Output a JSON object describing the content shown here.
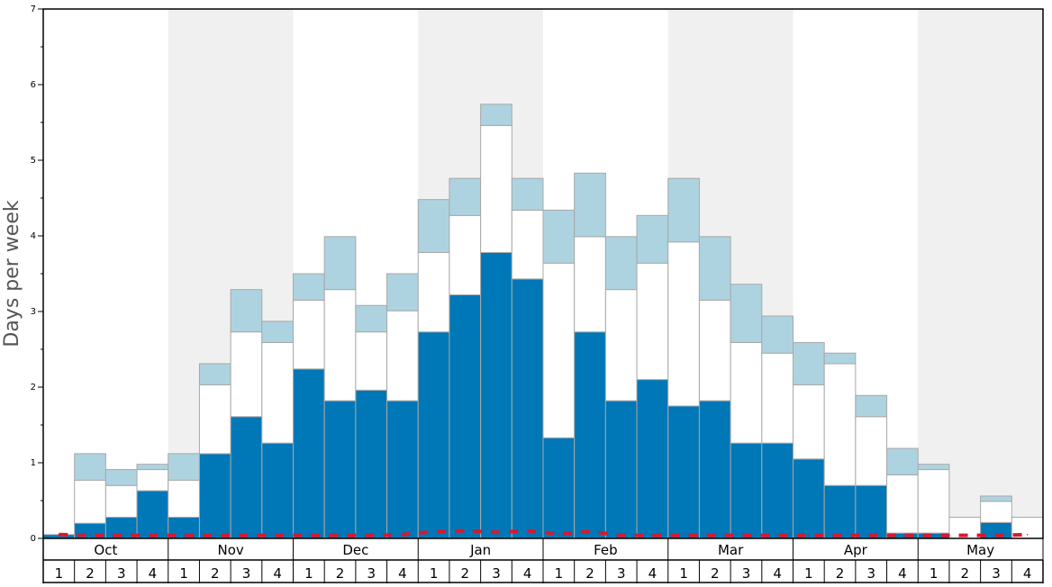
{
  "chart_data": {
    "type": "bar",
    "stacked": true,
    "ylabel": "Days per week",
    "ylim": [
      0,
      7
    ],
    "yticks": [
      0,
      1,
      2,
      3,
      4,
      5,
      6,
      7
    ],
    "months": [
      "Oct",
      "Nov",
      "Dec",
      "Jan",
      "Feb",
      "Mar",
      "Apr",
      "May"
    ],
    "week_labels": [
      "1",
      "2",
      "3",
      "4"
    ],
    "grid": false,
    "colors": {
      "bottom_series": "#0077b6",
      "middle_series": "#ffffff",
      "top_series": "#aed3e0",
      "line_series": "#d9182d",
      "band_shade": "#f0f0f0",
      "bar_outline": "#a8a8a8"
    },
    "series": [
      {
        "values": [
          0.05,
          0.2,
          0.28,
          0.63,
          0.28,
          1.12,
          1.61,
          1.26,
          2.24,
          1.82,
          1.96,
          1.82,
          2.73,
          3.22,
          3.78,
          3.43,
          1.33,
          2.73,
          1.82,
          2.1,
          1.75,
          1.82,
          1.26,
          1.26,
          1.05,
          0.7,
          0.7,
          0.07,
          0.07,
          0.0,
          0.21,
          0.0
        ]
      },
      {
        "values": [
          0.0,
          0.57,
          0.42,
          0.28,
          0.49,
          0.91,
          1.12,
          1.33,
          0.91,
          1.47,
          0.77,
          1.19,
          1.05,
          1.05,
          1.68,
          0.91,
          2.31,
          1.26,
          1.47,
          1.54,
          2.17,
          1.33,
          1.33,
          1.19,
          0.98,
          1.61,
          0.91,
          0.77,
          0.84,
          0.28,
          0.28,
          0.28
        ]
      },
      {
        "values": [
          0.0,
          0.35,
          0.21,
          0.07,
          0.35,
          0.28,
          0.56,
          0.28,
          0.35,
          0.7,
          0.35,
          0.49,
          0.7,
          0.49,
          0.28,
          0.42,
          0.7,
          0.84,
          0.7,
          0.63,
          0.84,
          0.84,
          0.77,
          0.49,
          0.56,
          0.14,
          0.28,
          0.35,
          0.07,
          0.0,
          0.07,
          0.0
        ]
      },
      {
        "values": [
          0.05,
          0.04,
          0.04,
          0.04,
          0.04,
          0.04,
          0.04,
          0.04,
          0.04,
          0.04,
          0.04,
          0.05,
          0.09,
          0.1,
          0.08,
          0.1,
          0.06,
          0.09,
          0.04,
          0.04,
          0.04,
          0.04,
          0.04,
          0.04,
          0.04,
          0.04,
          0.04,
          0.04,
          0.04,
          0.04,
          0.04,
          0.05
        ]
      }
    ]
  }
}
